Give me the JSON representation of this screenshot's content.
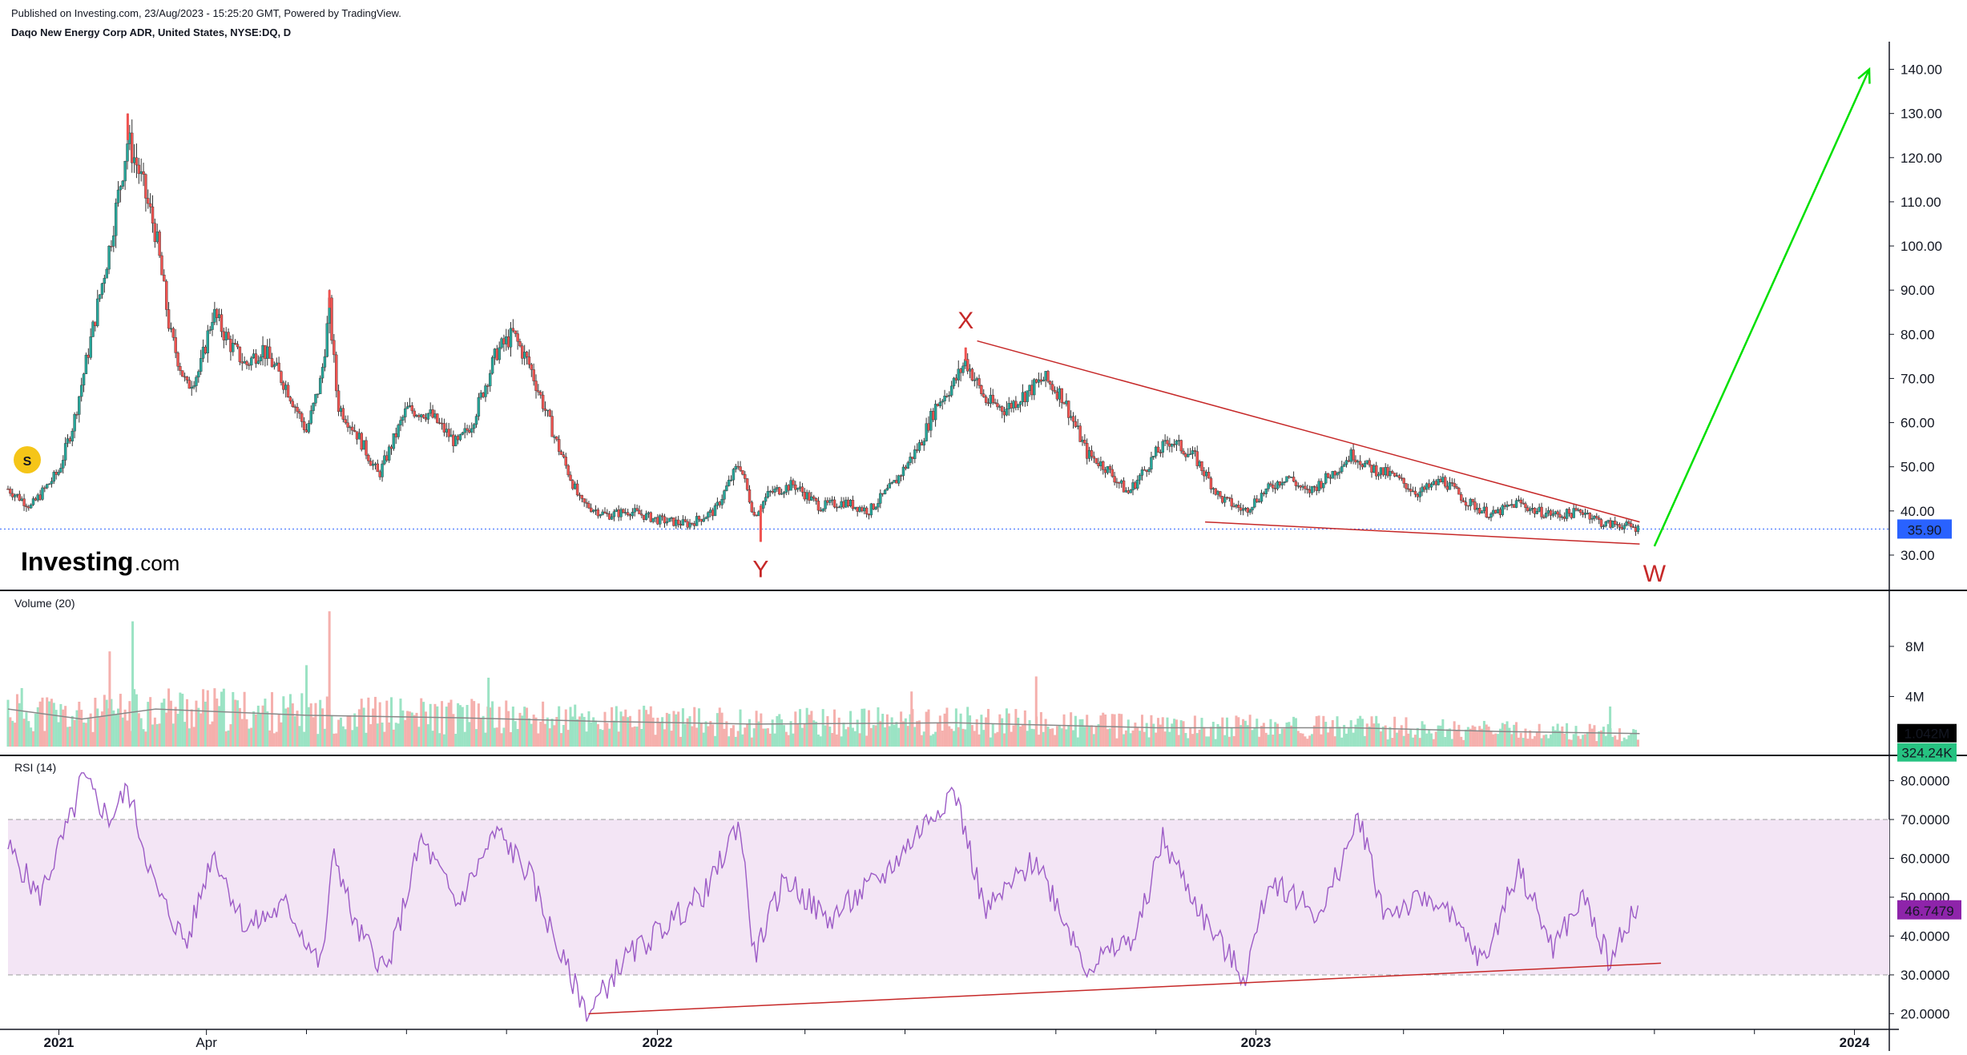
{
  "header": {
    "published": "Published on Investing.com, 23/Aug/2023 - 15:25:20 GMT, Powered by TradingView.",
    "symbol": "Daqo New Energy Corp ADR, United States, NYSE:DQ, D"
  },
  "logo": {
    "name": "Investing",
    "suffix": ".com",
    "splits_badge": "S"
  },
  "colors": {
    "up": "#26a69a",
    "down": "#ef5350",
    "volume_up": "#9be3c4",
    "volume_down": "#f5b0ad",
    "price_tag": "#2962ff",
    "rsi_line": "#9c5bc6",
    "rsi_band": "#f3e5f5",
    "annotation": "#c62828",
    "target_arrow": "#00e000"
  },
  "chart_data": [
    {
      "type": "candlestick",
      "title": "Daqo New Energy Corp ADR, United States, NYSE:DQ, D",
      "ylim": [
        26,
        143
      ],
      "y_ticks": [
        "140.00",
        "130.00",
        "120.00",
        "110.00",
        "100.00",
        "90.00",
        "80.00",
        "70.00",
        "60.00",
        "50.00",
        "40.00",
        "30.00"
      ],
      "last_price_label": "35.90",
      "last_price": 35.9,
      "x_ticks": [
        "2021",
        "Apr",
        "2022",
        "2023",
        "2024"
      ],
      "price_path": [
        [
          "2020-12-01",
          45
        ],
        [
          "2020-12-15",
          41
        ],
        [
          "2021-01-01",
          49
        ],
        [
          "2021-01-10",
          60
        ],
        [
          "2021-01-20",
          78
        ],
        [
          "2021-02-01",
          100
        ],
        [
          "2021-02-12",
          124
        ],
        [
          "2021-02-18",
          118
        ],
        [
          "2021-03-01",
          103
        ],
        [
          "2021-03-10",
          80
        ],
        [
          "2021-03-20",
          68
        ],
        [
          "2021-03-28",
          72
        ],
        [
          "2021-04-05",
          85
        ],
        [
          "2021-04-15",
          78
        ],
        [
          "2021-04-25",
          73
        ],
        [
          "2021-05-05",
          77
        ],
        [
          "2021-05-20",
          68
        ],
        [
          "2021-06-01",
          58
        ],
        [
          "2021-06-10",
          70
        ],
        [
          "2021-06-15",
          86
        ],
        [
          "2021-06-20",
          64
        ],
        [
          "2021-07-01",
          58
        ],
        [
          "2021-07-15",
          48
        ],
        [
          "2021-08-01",
          63
        ],
        [
          "2021-08-15",
          62
        ],
        [
          "2021-09-01",
          55
        ],
        [
          "2021-09-10",
          60
        ],
        [
          "2021-09-25",
          76
        ],
        [
          "2021-10-05",
          80
        ],
        [
          "2021-10-15",
          73
        ],
        [
          "2021-11-01",
          55
        ],
        [
          "2021-11-15",
          42
        ],
        [
          "2021-12-01",
          39
        ],
        [
          "2021-12-15",
          40
        ],
        [
          "2022-01-01",
          38
        ],
        [
          "2022-01-20",
          37
        ],
        [
          "2022-02-05",
          40
        ],
        [
          "2022-02-20",
          51
        ],
        [
          "2022-03-01",
          39
        ],
        [
          "2022-03-10",
          44
        ],
        [
          "2022-03-25",
          46
        ],
        [
          "2022-04-10",
          41
        ],
        [
          "2022-04-25",
          42
        ],
        [
          "2022-05-10",
          40
        ],
        [
          "2022-05-25",
          46
        ],
        [
          "2022-06-10",
          55
        ],
        [
          "2022-06-20",
          64
        ],
        [
          "2022-07-01",
          69
        ],
        [
          "2022-07-08",
          74
        ],
        [
          "2022-07-20",
          65
        ],
        [
          "2022-08-01",
          63
        ],
        [
          "2022-08-15",
          67
        ],
        [
          "2022-08-25",
          70
        ],
        [
          "2022-09-05",
          66
        ],
        [
          "2022-09-20",
          53
        ],
        [
          "2022-10-01",
          50
        ],
        [
          "2022-10-15",
          44
        ],
        [
          "2022-11-01",
          53
        ],
        [
          "2022-11-10",
          56
        ],
        [
          "2022-11-25",
          52
        ],
        [
          "2022-12-10",
          43
        ],
        [
          "2022-12-25",
          40
        ],
        [
          "2023-01-05",
          44
        ],
        [
          "2023-01-20",
          48
        ],
        [
          "2023-02-01",
          44
        ],
        [
          "2023-02-15",
          48
        ],
        [
          "2023-03-01",
          53
        ],
        [
          "2023-03-10",
          50
        ],
        [
          "2023-03-25",
          48
        ],
        [
          "2023-04-10",
          44
        ],
        [
          "2023-04-25",
          47
        ],
        [
          "2023-05-10",
          42
        ],
        [
          "2023-05-25",
          39
        ],
        [
          "2023-06-10",
          42
        ],
        [
          "2023-06-20",
          40
        ],
        [
          "2023-07-05",
          39
        ],
        [
          "2023-07-20",
          40
        ],
        [
          "2023-08-01",
          37
        ],
        [
          "2023-08-10",
          37
        ],
        [
          "2023-08-23",
          35.9
        ]
      ],
      "highs_lows": [
        {
          "date": "2021-02-12",
          "value": 130
        },
        {
          "date": "2021-06-15",
          "value": 90
        },
        {
          "date": "2022-03-05",
          "value": 33
        },
        {
          "date": "2022-07-08",
          "value": 77
        }
      ],
      "annotations": [
        {
          "label": "X",
          "date": "2022-07-08",
          "value": 77
        },
        {
          "label": "Y",
          "date": "2022-03-05",
          "value": 33
        },
        {
          "label": "W",
          "date": "2023-09-01",
          "value": 32
        }
      ],
      "wedge_upper": [
        [
          "2022-07-15",
          78.5
        ],
        [
          "2023-08-23",
          37.5
        ]
      ],
      "wedge_lower": [
        [
          "2022-12-01",
          37.5
        ],
        [
          "2023-08-23",
          32.5
        ]
      ],
      "projection_arrow": [
        [
          "2023-09-01",
          32
        ],
        [
          "2024-01-10",
          140
        ]
      ]
    },
    {
      "type": "bar",
      "title": "Volume (20)",
      "ylim": [
        0,
        11000000
      ],
      "y_ticks": [
        "8M",
        "4M"
      ],
      "last_ma_label": "1.042M",
      "last_volume_label": "324.24K",
      "ma_path": [
        [
          "2020-12-01",
          3000000
        ],
        [
          "2021-01-15",
          2200000
        ],
        [
          "2021-03-01",
          3000000
        ],
        [
          "2021-06-01",
          2500000
        ],
        [
          "2021-09-01",
          2300000
        ],
        [
          "2021-12-01",
          2000000
        ],
        [
          "2022-03-01",
          1800000
        ],
        [
          "2022-07-01",
          1900000
        ],
        [
          "2022-11-01",
          1500000
        ],
        [
          "2023-03-01",
          1500000
        ],
        [
          "2023-06-01",
          1200000
        ],
        [
          "2023-08-23",
          1042000
        ]
      ],
      "spikes": [
        {
          "date": "2021-06-15",
          "value": 10800000
        },
        {
          "date": "2021-02-15",
          "value": 10000000
        },
        {
          "date": "2021-02-01",
          "value": 7600000
        },
        {
          "date": "2021-06-01",
          "value": 6500000
        },
        {
          "date": "2022-08-20",
          "value": 5600000
        },
        {
          "date": "2021-09-20",
          "value": 5500000
        },
        {
          "date": "2022-06-05",
          "value": 4400000
        },
        {
          "date": "2023-08-05",
          "value": 3200000
        }
      ]
    },
    {
      "type": "line",
      "title": "RSI (14)",
      "ylim": [
        17,
        83
      ],
      "y_ticks": [
        "80.0000",
        "70.0000",
        "60.0000",
        "50.0000",
        "40.0000",
        "30.0000",
        "20.0000"
      ],
      "band": [
        30,
        70
      ],
      "last_value_label": "46.7479",
      "rsi_path": [
        [
          "2020-12-01",
          63
        ],
        [
          "2020-12-20",
          50
        ],
        [
          "2021-01-10",
          72
        ],
        [
          "2021-01-15",
          81
        ],
        [
          "2021-02-01",
          70
        ],
        [
          "2021-02-12",
          78
        ],
        [
          "2021-03-01",
          52
        ],
        [
          "2021-03-20",
          38
        ],
        [
          "2021-04-05",
          62
        ],
        [
          "2021-04-25",
          42
        ],
        [
          "2021-05-20",
          48
        ],
        [
          "2021-06-10",
          32
        ],
        [
          "2021-06-18",
          62
        ],
        [
          "2021-07-01",
          42
        ],
        [
          "2021-07-20",
          31
        ],
        [
          "2021-08-10",
          65
        ],
        [
          "2021-09-01",
          48
        ],
        [
          "2021-09-25",
          67
        ],
        [
          "2021-10-15",
          56
        ],
        [
          "2021-11-05",
          33
        ],
        [
          "2021-11-20",
          20
        ],
        [
          "2021-12-10",
          33
        ],
        [
          "2022-01-01",
          41
        ],
        [
          "2022-02-01",
          52
        ],
        [
          "2022-02-20",
          70
        ],
        [
          "2022-03-01",
          35
        ],
        [
          "2022-03-20",
          55
        ],
        [
          "2022-04-15",
          44
        ],
        [
          "2022-05-20",
          56
        ],
        [
          "2022-06-15",
          70
        ],
        [
          "2022-07-01",
          78
        ],
        [
          "2022-07-20",
          46
        ],
        [
          "2022-08-20",
          60
        ],
        [
          "2022-09-20",
          32
        ],
        [
          "2022-10-20",
          40
        ],
        [
          "2022-11-05",
          65
        ],
        [
          "2022-12-01",
          44
        ],
        [
          "2022-12-25",
          29
        ],
        [
          "2023-01-10",
          55
        ],
        [
          "2023-02-10",
          45
        ],
        [
          "2023-03-05",
          71
        ],
        [
          "2023-03-20",
          46
        ],
        [
          "2023-04-20",
          50
        ],
        [
          "2023-05-20",
          33
        ],
        [
          "2023-06-10",
          58
        ],
        [
          "2023-07-01",
          37
        ],
        [
          "2023-07-20",
          50
        ],
        [
          "2023-08-05",
          33
        ],
        [
          "2023-08-15",
          44
        ],
        [
          "2023-08-23",
          46.7
        ]
      ],
      "trendline": [
        [
          "2021-11-20",
          20
        ],
        [
          "2023-09-05",
          33
        ]
      ]
    }
  ]
}
